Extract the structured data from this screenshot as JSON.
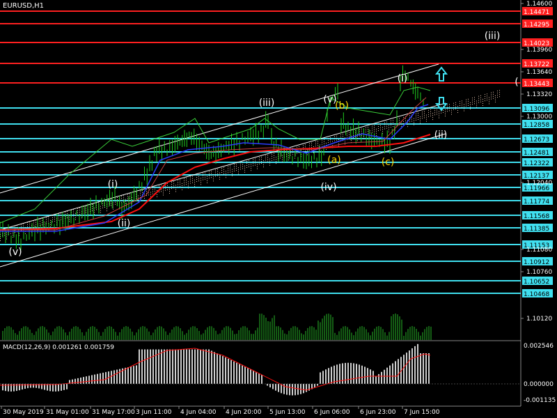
{
  "header": {
    "symbol_label": "EURUSD,H1"
  },
  "macd": {
    "label": "MACD(12,26,9) 0.001261 0.001759",
    "scale": [
      "0.002546",
      "0.000000",
      "-0.001135"
    ]
  },
  "price_scale": {
    "ticks": [
      "1.14600",
      "1.13960",
      "1.13640",
      "1.13320",
      "1.13000",
      "1.12040",
      "1.11080",
      "1.10760",
      "1.10120"
    ]
  },
  "time_axis": {
    "labels": [
      "30 May 2019",
      "31 May 01:00",
      "31 May 17:00",
      "3 Jun 11:00",
      "4 Jun 04:00",
      "4 Jun 20:00",
      "5 Jun 13:00",
      "6 Jun 06:00",
      "6 Jun 23:00",
      "7 Jun 15:00"
    ]
  },
  "horizontal_levels": [
    {
      "price": "1.14471",
      "color": "#ff2020"
    },
    {
      "price": "1.14295",
      "color": "#ff2020"
    },
    {
      "price": "1.14023",
      "color": "#ff2020"
    },
    {
      "price": "1.13722",
      "color": "#ff2020"
    },
    {
      "price": "1.13443",
      "color": "#ff2020"
    },
    {
      "price": "1.13096",
      "color": "#40e0f0"
    },
    {
      "price": "1.12858",
      "color": "#40e0f0"
    },
    {
      "price": "1.12673",
      "color": "#40e0f0"
    },
    {
      "price": "1.12481",
      "color": "#40e0f0"
    },
    {
      "price": "1.12322",
      "color": "#40e0f0"
    },
    {
      "price": "1.12137",
      "color": "#40e0f0"
    },
    {
      "price": "1.11966",
      "color": "#40e0f0"
    },
    {
      "price": "1.11774",
      "color": "#40e0f0"
    },
    {
      "price": "1.11568",
      "color": "#40e0f0"
    },
    {
      "price": "1.11385",
      "color": "#40e0f0"
    },
    {
      "price": "1.11153",
      "color": "#40e0f0"
    },
    {
      "price": "1.10912",
      "color": "#40e0f0"
    },
    {
      "price": "1.10652",
      "color": "#40e0f0"
    },
    {
      "price": "1.10468",
      "color": "#40e0f0"
    }
  ],
  "wave_labels": [
    {
      "text": "(v)",
      "color": "#ffffff"
    },
    {
      "text": "(i)",
      "color": "#ffffff"
    },
    {
      "text": "(ii)",
      "color": "#ffffff"
    },
    {
      "text": "(iii)",
      "color": "#ffffff"
    },
    {
      "text": "(iv)",
      "color": "#ffffff"
    },
    {
      "text": "(v)",
      "color": "#ffffff"
    },
    {
      "text": "(b)",
      "color": "#ffd700"
    },
    {
      "text": "(a)",
      "color": "#ffd700"
    },
    {
      "text": "(c)",
      "color": "#ffd700"
    },
    {
      "text": "(i)",
      "color": "#ffffff"
    },
    {
      "text": "(ii)",
      "color": "#ffffff"
    },
    {
      "text": "(iii)",
      "color": "#ffffff"
    },
    {
      "text": "(",
      "color": "#ffffff"
    }
  ],
  "arrows": [
    {
      "name": "up-arrow-icon",
      "color": "#40e0f0"
    },
    {
      "name": "down-arrow-icon",
      "color": "#40e0f0"
    }
  ]
}
